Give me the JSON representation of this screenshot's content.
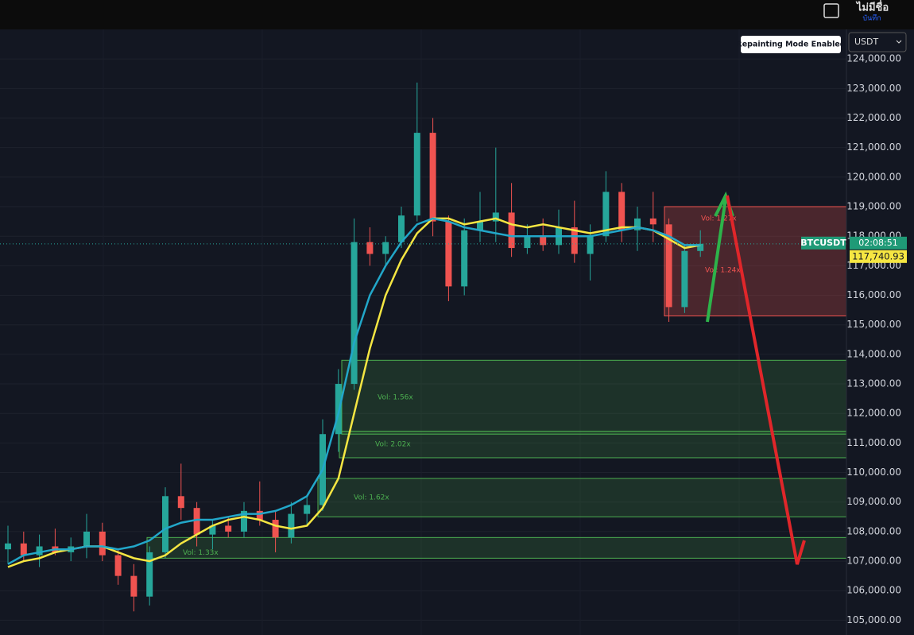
{
  "header": {
    "title": "ไม่มีชื่อ",
    "save": "บันทึก",
    "currency": "USDT",
    "notice": "Repainting Mode Enabled"
  },
  "chart_data": {
    "type": "candlestick",
    "symbol": "BTCUSDT",
    "countdown": "02:08:51",
    "last_price": {
      "value": 117740.93,
      "label": "117,740.93"
    },
    "ylim": [
      104500,
      125000
    ],
    "yticks": [
      {
        "value": 105000,
        "label": "105,000.00"
      },
      {
        "value": 106000,
        "label": "106,000.00"
      },
      {
        "value": 107000,
        "label": "107,000.00"
      },
      {
        "value": 108000,
        "label": "108,000.00"
      },
      {
        "value": 109000,
        "label": "109,000.00"
      },
      {
        "value": 110000,
        "label": "110,000.00"
      },
      {
        "value": 111000,
        "label": "111,000.00"
      },
      {
        "value": 112000,
        "label": "112,000.00"
      },
      {
        "value": 113000,
        "label": "113,000.00"
      },
      {
        "value": 114000,
        "label": "114,000.00"
      },
      {
        "value": 115000,
        "label": "115,000.00"
      },
      {
        "value": 116000,
        "label": "116,000.00"
      },
      {
        "value": 117000,
        "label": "117,000.00"
      },
      {
        "value": 118000,
        "label": "118,000.00"
      },
      {
        "value": 119000,
        "label": "119,000.00"
      },
      {
        "value": 120000,
        "label": "120,000.00"
      },
      {
        "value": 121000,
        "label": "121,000.00"
      },
      {
        "value": 122000,
        "label": "122,000.00"
      },
      {
        "value": 123000,
        "label": "123,000.00"
      },
      {
        "value": 124000,
        "label": "124,000.00"
      }
    ],
    "up_color": "#26a69a",
    "down_color": "#ef5350",
    "candles": [
      {
        "open": 107400,
        "high": 108200,
        "low": 106900,
        "close": 107600
      },
      {
        "open": 107600,
        "high": 108000,
        "low": 107000,
        "close": 107200
      },
      {
        "open": 107200,
        "high": 107900,
        "low": 106800,
        "close": 107500
      },
      {
        "open": 107500,
        "high": 108100,
        "low": 107200,
        "close": 107300
      },
      {
        "open": 107300,
        "high": 107800,
        "low": 107000,
        "close": 107500
      },
      {
        "open": 107500,
        "high": 108600,
        "low": 107100,
        "close": 108000
      },
      {
        "open": 108000,
        "high": 108300,
        "low": 107000,
        "close": 107200
      },
      {
        "open": 107200,
        "high": 107400,
        "low": 106200,
        "close": 106500
      },
      {
        "open": 106500,
        "high": 106900,
        "low": 105300,
        "close": 105800
      },
      {
        "open": 105800,
        "high": 107500,
        "low": 105500,
        "close": 107300
      },
      {
        "open": 107300,
        "high": 109500,
        "low": 107100,
        "close": 109200
      },
      {
        "open": 109200,
        "high": 110300,
        "low": 108400,
        "close": 108800
      },
      {
        "open": 108800,
        "high": 109000,
        "low": 107500,
        "close": 107900
      },
      {
        "open": 107900,
        "high": 108400,
        "low": 107400,
        "close": 108200
      },
      {
        "open": 108200,
        "high": 108500,
        "low": 107800,
        "close": 108000
      },
      {
        "open": 108000,
        "high": 109000,
        "low": 107800,
        "close": 108700
      },
      {
        "open": 108700,
        "high": 109700,
        "low": 108200,
        "close": 108400
      },
      {
        "open": 108400,
        "high": 108700,
        "low": 107300,
        "close": 107800
      },
      {
        "open": 107800,
        "high": 109000,
        "low": 107600,
        "close": 108600
      },
      {
        "open": 108600,
        "high": 109200,
        "low": 108200,
        "close": 108900
      },
      {
        "open": 108900,
        "high": 111800,
        "low": 108700,
        "close": 111300
      },
      {
        "open": 111300,
        "high": 113500,
        "low": 110700,
        "close": 113000
      },
      {
        "open": 113000,
        "high": 118600,
        "low": 112800,
        "close": 117800
      },
      {
        "open": 117800,
        "high": 118300,
        "low": 117000,
        "close": 117400
      },
      {
        "open": 117400,
        "high": 118000,
        "low": 117000,
        "close": 117800
      },
      {
        "open": 117800,
        "high": 119000,
        "low": 117600,
        "close": 118700
      },
      {
        "open": 118700,
        "high": 123200,
        "low": 118500,
        "close": 121500
      },
      {
        "open": 121500,
        "high": 122000,
        "low": 118000,
        "close": 118500
      },
      {
        "open": 118500,
        "high": 118700,
        "low": 115800,
        "close": 116300
      },
      {
        "open": 116300,
        "high": 118600,
        "low": 116000,
        "close": 118200
      },
      {
        "open": 118200,
        "high": 119500,
        "low": 117800,
        "close": 118500
      },
      {
        "open": 118500,
        "high": 121000,
        "low": 117800,
        "close": 118800
      },
      {
        "open": 118800,
        "high": 119800,
        "low": 117300,
        "close": 117600
      },
      {
        "open": 117600,
        "high": 118400,
        "low": 117400,
        "close": 118000
      },
      {
        "open": 118000,
        "high": 118600,
        "low": 117500,
        "close": 117700
      },
      {
        "open": 117700,
        "high": 118900,
        "low": 117400,
        "close": 118300
      },
      {
        "open": 118300,
        "high": 119200,
        "low": 117100,
        "close": 117400
      },
      {
        "open": 117400,
        "high": 118400,
        "low": 116500,
        "close": 118000
      },
      {
        "open": 118000,
        "high": 120200,
        "low": 117800,
        "close": 119500
      },
      {
        "open": 119500,
        "high": 119800,
        "low": 117800,
        "close": 118200
      },
      {
        "open": 118200,
        "high": 119000,
        "low": 117500,
        "close": 118600
      },
      {
        "open": 118600,
        "high": 119500,
        "low": 117800,
        "close": 118400
      },
      {
        "open": 118400,
        "high": 118600,
        "low": 115100,
        "close": 115600
      },
      {
        "open": 115600,
        "high": 117700,
        "low": 115400,
        "close": 117500
      },
      {
        "open": 117500,
        "high": 118200,
        "low": 117300,
        "close": 117740.93
      }
    ],
    "series": [
      {
        "color": "#f5e642",
        "values": [
          106800,
          107000,
          107100,
          107300,
          107400,
          107500,
          107500,
          107300,
          107100,
          107000,
          107200,
          107600,
          107900,
          108200,
          108400,
          108500,
          108400,
          108200,
          108100,
          108200,
          108800,
          109800,
          112000,
          114200,
          116000,
          117200,
          118100,
          118600,
          118600,
          118400,
          118500,
          118600,
          118400,
          118300,
          118400,
          118300,
          118200,
          118100,
          118200,
          118300,
          118300,
          118200,
          117900,
          117600,
          117700
        ]
      },
      {
        "color": "#22a7c9",
        "values": [
          106900,
          107200,
          107300,
          107400,
          107400,
          107500,
          107500,
          107400,
          107500,
          107700,
          108100,
          108300,
          108400,
          108400,
          108500,
          108600,
          108600,
          108700,
          108900,
          109200,
          110100,
          112000,
          114400,
          116000,
          117000,
          117800,
          118400,
          118600,
          118500,
          118300,
          118200,
          118100,
          118000,
          118000,
          118000,
          118000,
          118000,
          118000,
          118100,
          118200,
          118300,
          118200,
          118000,
          117700,
          117700
        ]
      }
    ],
    "zones": [
      {
        "low": 111300,
        "high": 113800,
        "label": "Vol: 1.56x",
        "kind": "demand"
      },
      {
        "low": 110500,
        "high": 111400,
        "label": "Vol: 2.02x",
        "kind": "demand"
      },
      {
        "low": 108500,
        "high": 109800,
        "label": "Vol: 1.62x",
        "kind": "demand"
      },
      {
        "low": 107100,
        "high": 107800,
        "label": "Vol: 1.33x",
        "kind": "demand"
      },
      {
        "low": 115300,
        "high": 119000,
        "label": "Vol: 1.27x",
        "kind": "supply"
      }
    ],
    "annotations": [
      "Vol: 1.24x"
    ]
  }
}
